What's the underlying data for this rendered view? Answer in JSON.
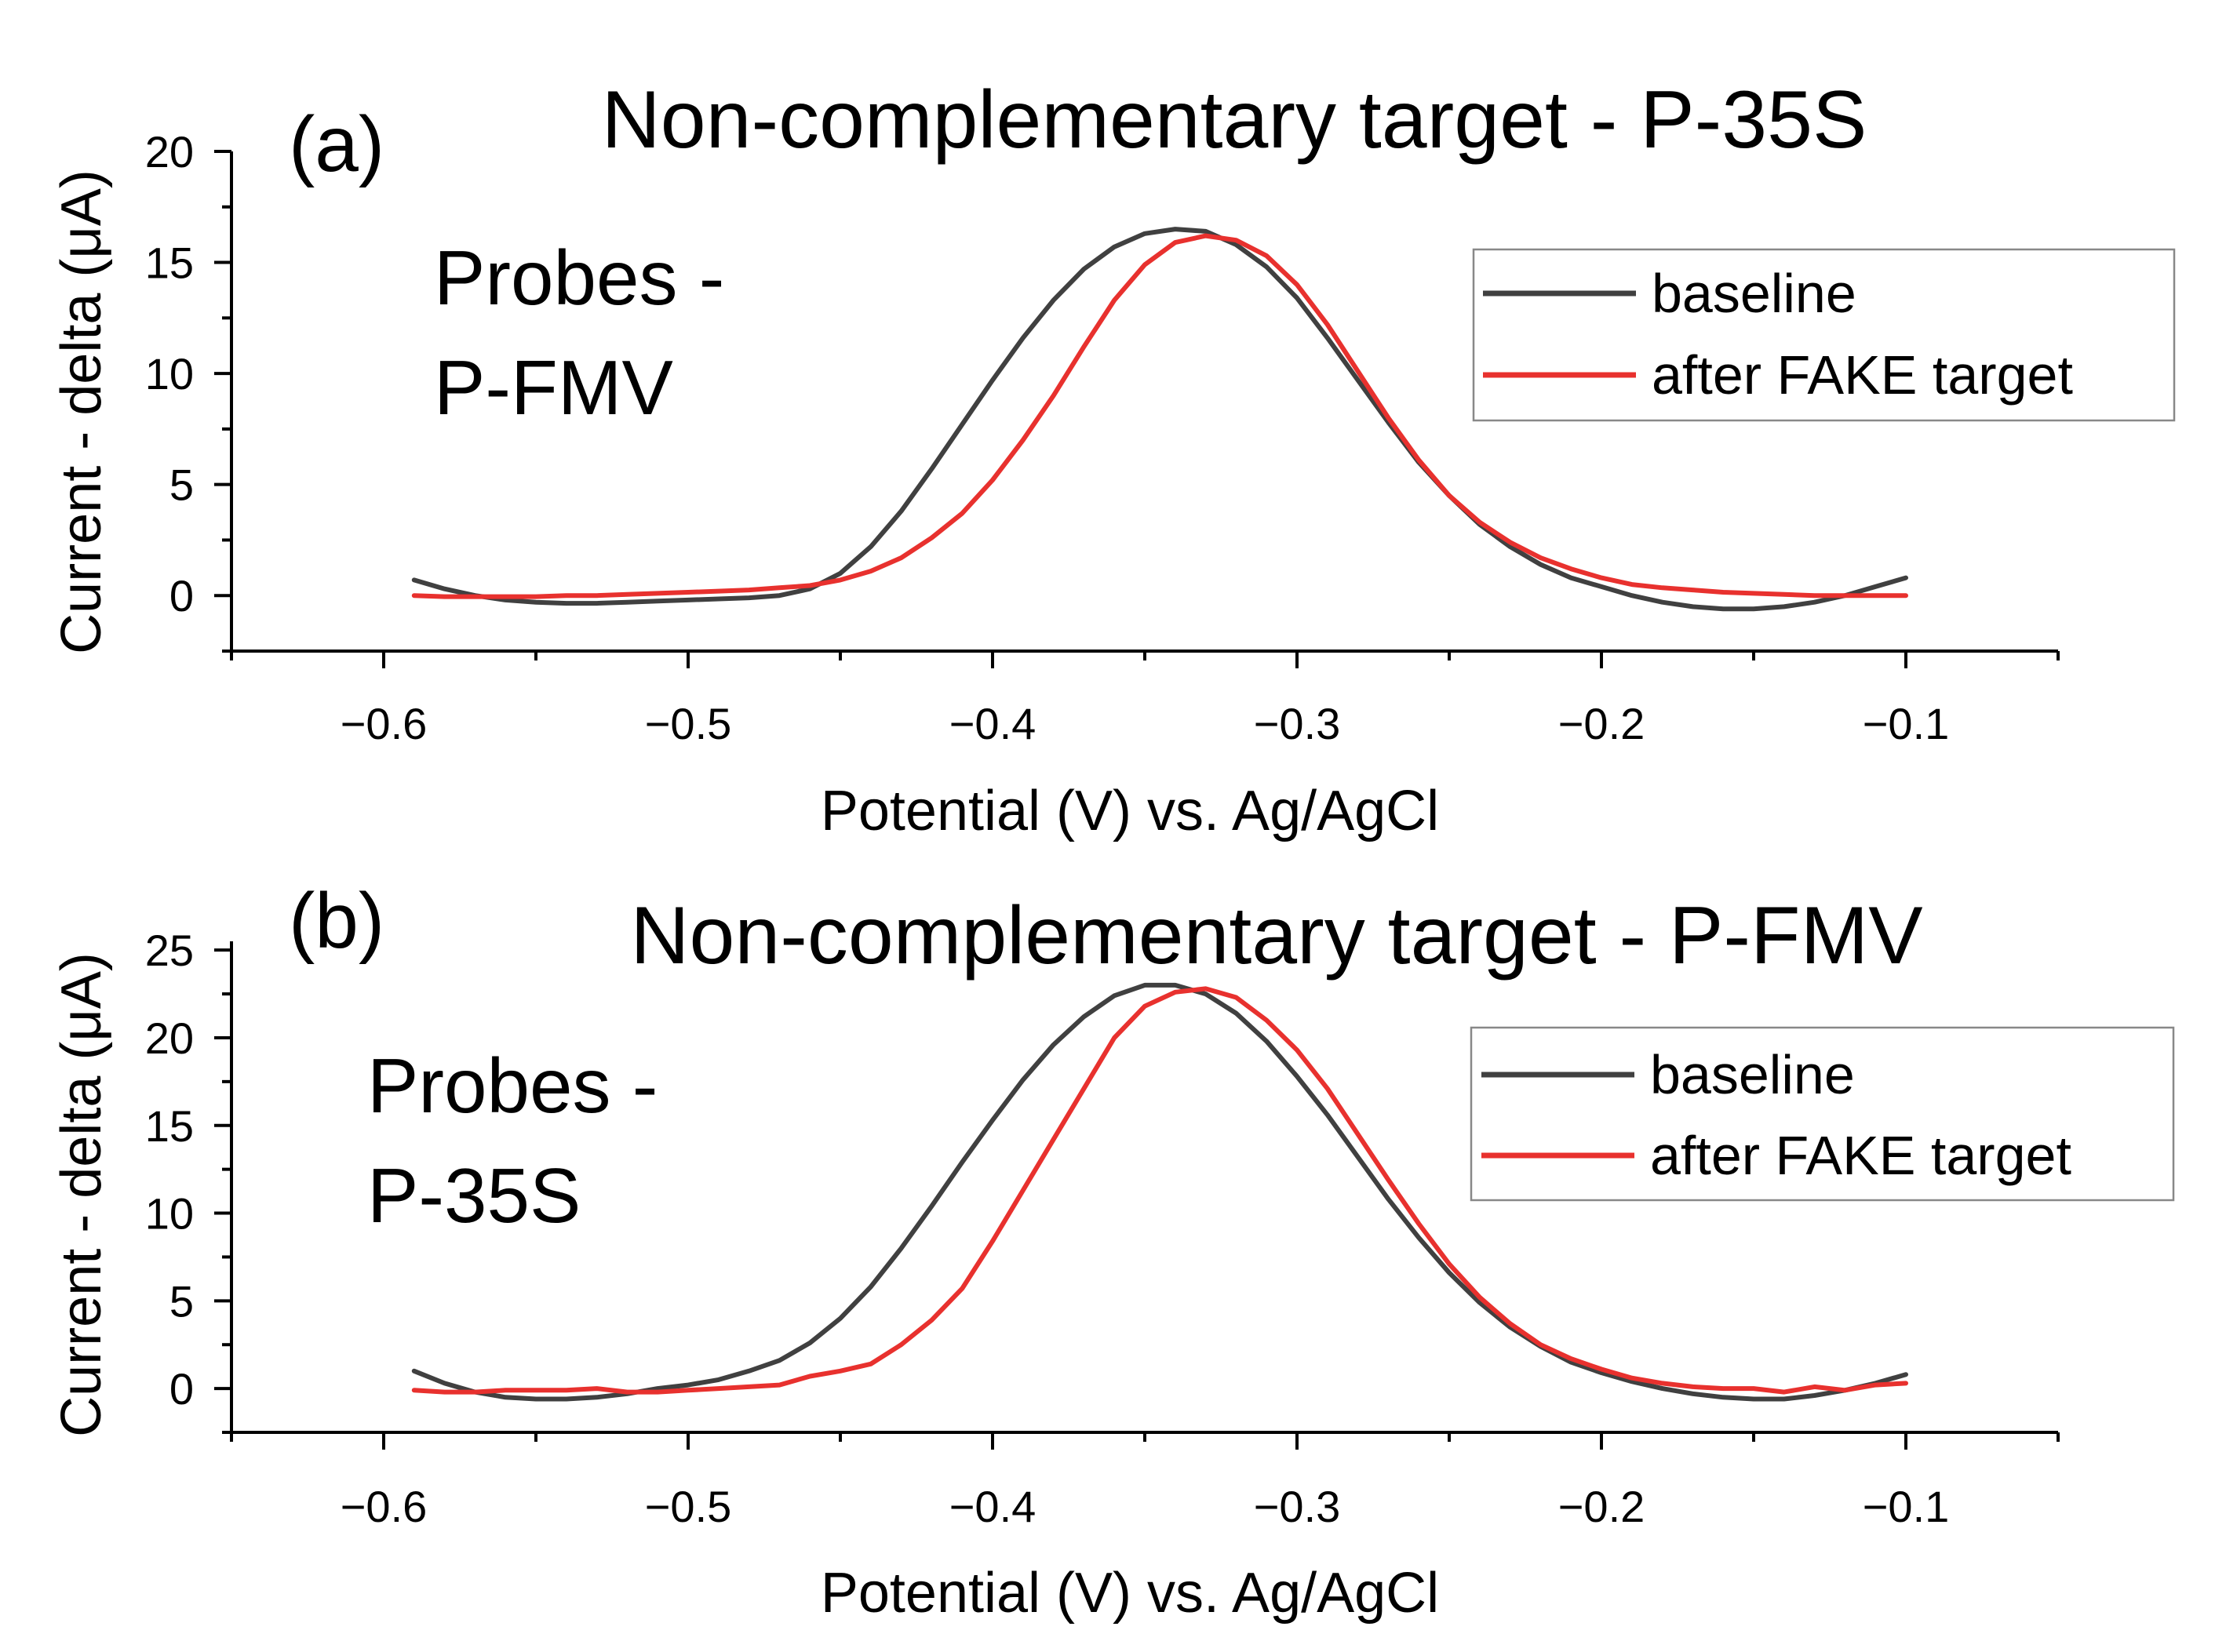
{
  "chart_data": [
    {
      "type": "line",
      "panel_label": "(a)",
      "title": "Non-complementary target - P-35S",
      "annotation": [
        "Probes -",
        "P-FMV"
      ],
      "xlabel": "Potential (V) vs. Ag/AgCl",
      "ylabel": "Current - delta (μA)",
      "xlim": [
        -0.65,
        -0.05
      ],
      "ylim": [
        -2.5,
        20
      ],
      "xticks": [
        -0.6,
        -0.5,
        -0.4,
        -0.3,
        -0.2,
        -0.1
      ],
      "xtick_labels": [
        "−0.6",
        "−0.5",
        "−0.4",
        "−0.3",
        "−0.2",
        "−0.1"
      ],
      "yticks": [
        0,
        5,
        10,
        15,
        20
      ],
      "ytick_labels": [
        "0",
        "5",
        "10",
        "15",
        "20"
      ],
      "legend_position": "top-right",
      "series": [
        {
          "name": "baseline",
          "color": "#404040",
          "x": [
            -0.59,
            -0.58,
            -0.57,
            -0.56,
            -0.55,
            -0.54,
            -0.53,
            -0.52,
            -0.51,
            -0.5,
            -0.49,
            -0.48,
            -0.47,
            -0.46,
            -0.45,
            -0.44,
            -0.43,
            -0.42,
            -0.41,
            -0.4,
            -0.39,
            -0.38,
            -0.37,
            -0.36,
            -0.35,
            -0.34,
            -0.33,
            -0.32,
            -0.31,
            -0.3,
            -0.29,
            -0.28,
            -0.27,
            -0.26,
            -0.25,
            -0.24,
            -0.23,
            -0.22,
            -0.21,
            -0.2,
            -0.19,
            -0.18,
            -0.17,
            -0.16,
            -0.15,
            -0.14,
            -0.13,
            -0.12,
            -0.11,
            -0.1
          ],
          "y": [
            0.7,
            0.3,
            0.0,
            -0.2,
            -0.3,
            -0.35,
            -0.35,
            -0.3,
            -0.25,
            -0.2,
            -0.15,
            -0.1,
            0.0,
            0.3,
            1.0,
            2.2,
            3.8,
            5.7,
            7.7,
            9.7,
            11.6,
            13.3,
            14.7,
            15.7,
            16.3,
            16.5,
            16.4,
            15.8,
            14.8,
            13.4,
            11.6,
            9.7,
            7.8,
            6.0,
            4.5,
            3.2,
            2.2,
            1.4,
            0.8,
            0.4,
            0.0,
            -0.3,
            -0.5,
            -0.6,
            -0.6,
            -0.5,
            -0.3,
            0.0,
            0.4,
            0.8
          ]
        },
        {
          "name": "after FAKE target",
          "color": "#e8312e",
          "x": [
            -0.59,
            -0.58,
            -0.57,
            -0.56,
            -0.55,
            -0.54,
            -0.53,
            -0.52,
            -0.51,
            -0.5,
            -0.49,
            -0.48,
            -0.47,
            -0.46,
            -0.45,
            -0.44,
            -0.43,
            -0.42,
            -0.41,
            -0.4,
            -0.39,
            -0.38,
            -0.37,
            -0.36,
            -0.35,
            -0.34,
            -0.33,
            -0.32,
            -0.31,
            -0.3,
            -0.29,
            -0.28,
            -0.27,
            -0.26,
            -0.25,
            -0.24,
            -0.23,
            -0.22,
            -0.21,
            -0.2,
            -0.19,
            -0.18,
            -0.17,
            -0.16,
            -0.15,
            -0.14,
            -0.13,
            -0.12,
            -0.11,
            -0.1
          ],
          "y": [
            0.0,
            -0.05,
            -0.05,
            -0.05,
            -0.05,
            0.0,
            0.0,
            0.05,
            0.1,
            0.15,
            0.2,
            0.25,
            0.35,
            0.45,
            0.7,
            1.1,
            1.7,
            2.6,
            3.7,
            5.2,
            7.0,
            9.0,
            11.2,
            13.3,
            14.9,
            15.9,
            16.2,
            16.0,
            15.3,
            14.0,
            12.2,
            10.1,
            8.0,
            6.1,
            4.5,
            3.3,
            2.4,
            1.7,
            1.2,
            0.8,
            0.5,
            0.35,
            0.25,
            0.15,
            0.1,
            0.05,
            0.0,
            0.0,
            0.0,
            0.0
          ]
        }
      ]
    },
    {
      "type": "line",
      "panel_label": "(b)",
      "title": "Non-complementary target - P-FMV",
      "annotation": [
        "Probes -",
        "P-35S"
      ],
      "xlabel": "Potential (V) vs. Ag/AgCl",
      "ylabel": "Current - delta (μA)",
      "xlim": [
        -0.65,
        -0.05
      ],
      "ylim": [
        -2.5,
        25.5
      ],
      "xticks": [
        -0.6,
        -0.5,
        -0.4,
        -0.3,
        -0.2,
        -0.1
      ],
      "xtick_labels": [
        "−0.6",
        "−0.5",
        "−0.4",
        "−0.3",
        "−0.2",
        "−0.1"
      ],
      "yticks": [
        0,
        5,
        10,
        15,
        20,
        25
      ],
      "ytick_labels": [
        "0",
        "5",
        "10",
        "15",
        "20",
        "25"
      ],
      "legend_position": "top-right",
      "series": [
        {
          "name": "baseline",
          "color": "#404040",
          "x": [
            -0.59,
            -0.58,
            -0.57,
            -0.56,
            -0.55,
            -0.54,
            -0.53,
            -0.52,
            -0.51,
            -0.5,
            -0.49,
            -0.48,
            -0.47,
            -0.46,
            -0.45,
            -0.44,
            -0.43,
            -0.42,
            -0.41,
            -0.4,
            -0.39,
            -0.38,
            -0.37,
            -0.36,
            -0.35,
            -0.34,
            -0.33,
            -0.32,
            -0.31,
            -0.3,
            -0.29,
            -0.28,
            -0.27,
            -0.26,
            -0.25,
            -0.24,
            -0.23,
            -0.22,
            -0.21,
            -0.2,
            -0.19,
            -0.18,
            -0.17,
            -0.16,
            -0.15,
            -0.14,
            -0.13,
            -0.12,
            -0.11,
            -0.1
          ],
          "y": [
            1.0,
            0.3,
            -0.2,
            -0.5,
            -0.6,
            -0.6,
            -0.5,
            -0.3,
            0.0,
            0.2,
            0.5,
            1.0,
            1.6,
            2.6,
            4.0,
            5.8,
            8.0,
            10.4,
            12.9,
            15.3,
            17.6,
            19.6,
            21.2,
            22.4,
            23.0,
            23.0,
            22.5,
            21.4,
            19.8,
            17.8,
            15.6,
            13.2,
            10.8,
            8.6,
            6.6,
            4.9,
            3.5,
            2.4,
            1.5,
            0.9,
            0.4,
            0.0,
            -0.3,
            -0.5,
            -0.6,
            -0.6,
            -0.4,
            -0.1,
            0.3,
            0.8
          ]
        },
        {
          "name": "after FAKE target",
          "color": "#e8312e",
          "x": [
            -0.59,
            -0.58,
            -0.57,
            -0.56,
            -0.55,
            -0.54,
            -0.53,
            -0.52,
            -0.51,
            -0.5,
            -0.49,
            -0.48,
            -0.47,
            -0.46,
            -0.45,
            -0.44,
            -0.43,
            -0.42,
            -0.41,
            -0.4,
            -0.39,
            -0.38,
            -0.37,
            -0.36,
            -0.35,
            -0.34,
            -0.33,
            -0.32,
            -0.31,
            -0.3,
            -0.29,
            -0.28,
            -0.27,
            -0.26,
            -0.25,
            -0.24,
            -0.23,
            -0.22,
            -0.21,
            -0.2,
            -0.19,
            -0.18,
            -0.17,
            -0.16,
            -0.15,
            -0.14,
            -0.13,
            -0.12,
            -0.11,
            -0.1
          ],
          "y": [
            -0.1,
            -0.2,
            -0.2,
            -0.1,
            -0.1,
            -0.1,
            0.0,
            -0.2,
            -0.2,
            -0.1,
            0.0,
            0.1,
            0.2,
            0.7,
            1.0,
            1.4,
            2.5,
            3.9,
            5.7,
            8.4,
            11.3,
            14.2,
            17.1,
            20.0,
            21.8,
            22.6,
            22.8,
            22.3,
            21.0,
            19.3,
            17.1,
            14.5,
            11.9,
            9.4,
            7.1,
            5.2,
            3.7,
            2.5,
            1.7,
            1.1,
            0.6,
            0.3,
            0.1,
            0.0,
            0.0,
            -0.2,
            0.1,
            -0.1,
            0.2,
            0.3
          ]
        }
      ]
    }
  ]
}
